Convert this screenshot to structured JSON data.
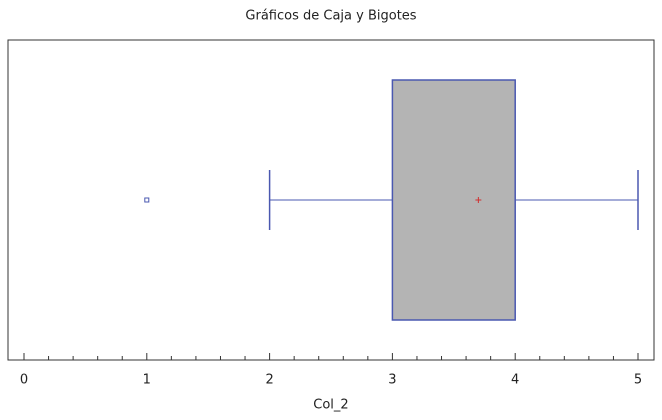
{
  "chart_data": {
    "type": "boxplot",
    "title": "Gráficos de Caja y Bigotes",
    "x_label": "Col_2",
    "min": 2,
    "q1": 3,
    "q3": 4,
    "max": 5,
    "mean": 3.7,
    "outliers": [
      1
    ],
    "box_color": "#b4b4b4",
    "line_color": "#4a58b0",
    "mean_color": "#d03030",
    "xlim": [
      0,
      5
    ],
    "xticks": [
      0,
      1,
      2,
      3,
      4,
      5
    ]
  }
}
